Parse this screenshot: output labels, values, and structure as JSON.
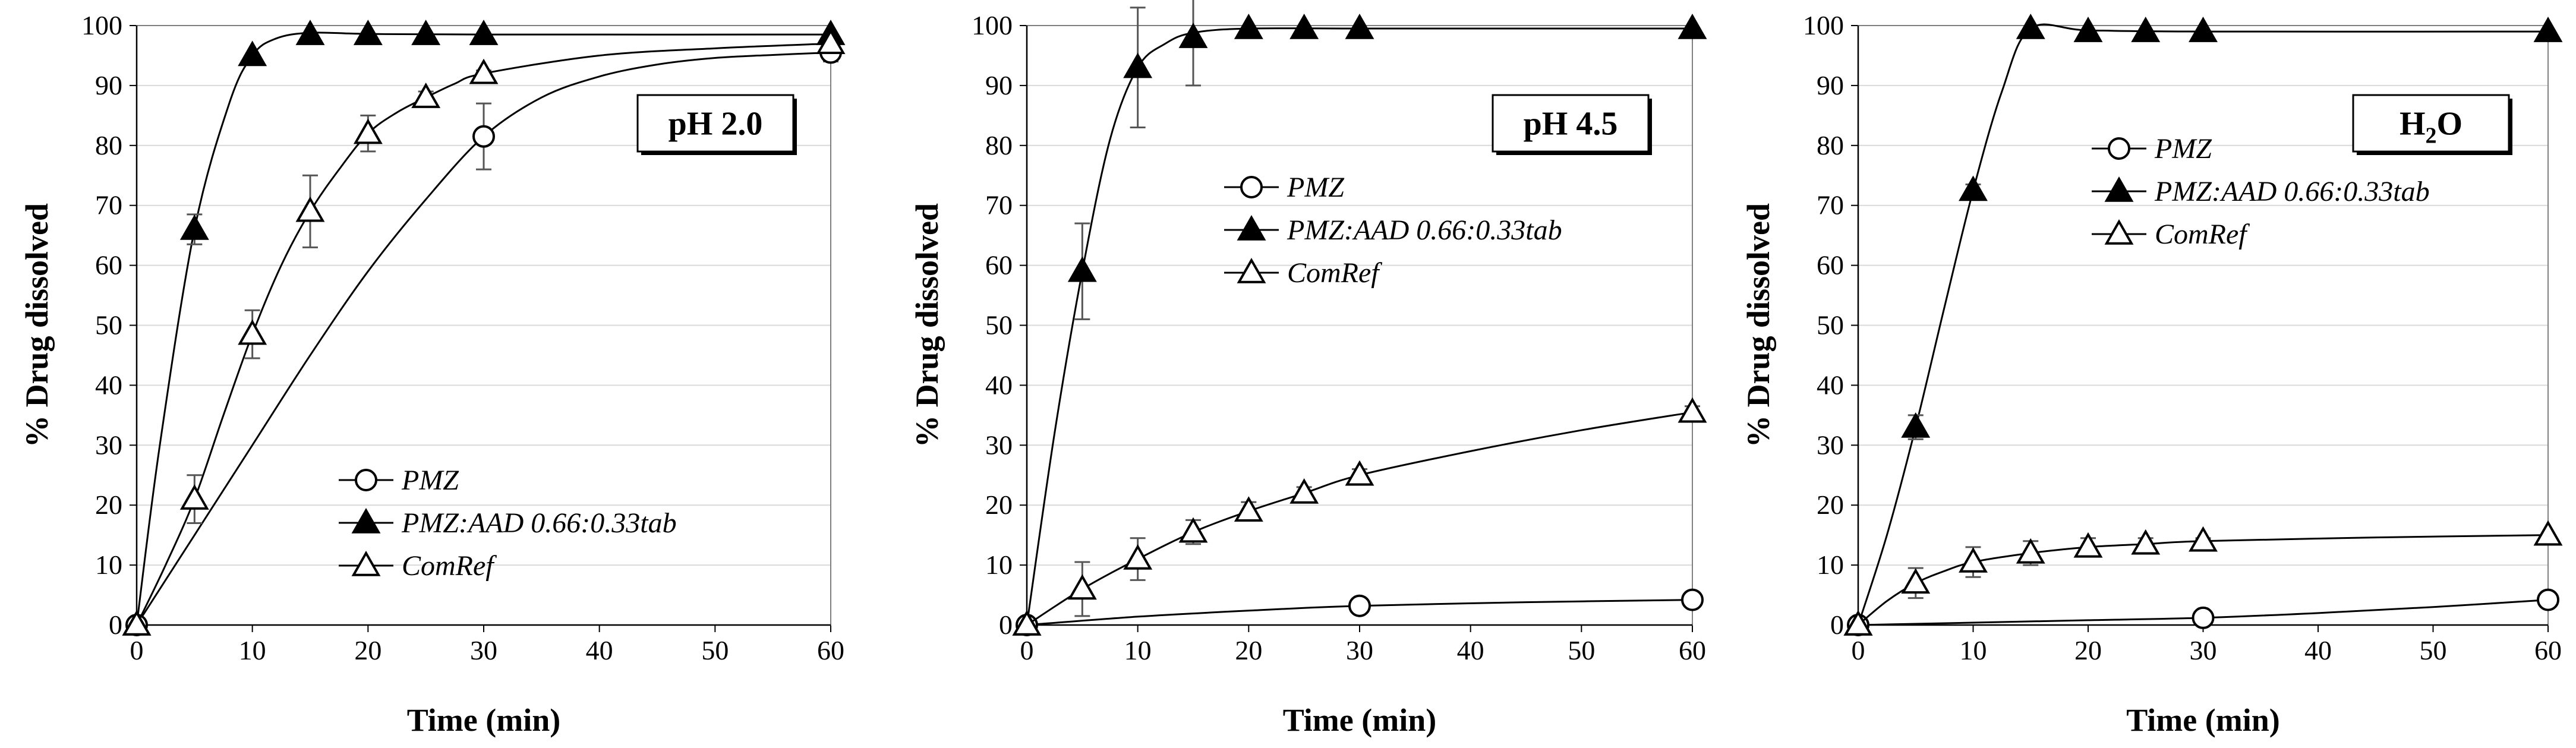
{
  "colors": {
    "marker_stroke": "#000000",
    "gridline": "#d9d9d9",
    "error_bar": "#555555",
    "background": "#ffffff"
  },
  "chart_data": [
    {
      "type": "line",
      "title": "pH 2.0",
      "title_parts": {
        "main": "pH 2.0",
        "sub": "",
        "tail": ""
      },
      "xlabel": "Time (min)",
      "ylabel": "% Drug dissolved",
      "xlim": [
        0,
        60
      ],
      "ylim": [
        0,
        100
      ],
      "xticks": [
        0,
        10,
        20,
        30,
        40,
        50,
        60
      ],
      "yticks": [
        0,
        10,
        20,
        30,
        40,
        50,
        60,
        70,
        80,
        90,
        100
      ],
      "grid": true,
      "legend_position": "lower-center",
      "series": [
        {
          "name": "PMZ",
          "marker": "circle-open",
          "x": [
            0,
            30,
            60
          ],
          "y": [
            0,
            81.5,
            95.5
          ],
          "err": [
            0,
            5.5,
            1.5
          ],
          "curve_x": [
            0,
            5,
            10,
            15,
            20,
            25,
            30,
            35,
            40,
            45,
            50,
            55,
            60
          ],
          "curve_y": [
            0,
            15,
            30,
            45,
            59,
            71,
            81.5,
            88,
            91.5,
            93.5,
            94.6,
            95.1,
            95.5
          ]
        },
        {
          "name": "PMZ:AAD 0.66:0.33tab",
          "marker": "triangle-filled",
          "x": [
            0,
            5,
            10,
            15,
            20,
            25,
            30,
            60
          ],
          "y": [
            0,
            66,
            95,
            98.5,
            98.5,
            98.5,
            98.5,
            98.5
          ],
          "err": [
            0,
            2.5,
            0,
            0,
            0,
            0,
            0,
            0
          ],
          "curve_x": [
            0,
            2,
            5,
            8,
            10,
            12,
            15,
            20,
            30,
            60
          ],
          "curve_y": [
            0,
            30,
            66,
            87,
            95,
            97.8,
            98.8,
            98.6,
            98.5,
            98.5
          ]
        },
        {
          "name": "ComRef",
          "marker": "triangle-open",
          "x": [
            0,
            5,
            10,
            15,
            20,
            25,
            30,
            60
          ],
          "y": [
            0,
            21,
            48.5,
            69,
            82,
            88,
            92,
            97
          ],
          "err": [
            0,
            4,
            4,
            6,
            3,
            1,
            0.5,
            0
          ],
          "curve_x": [
            0,
            2.5,
            5,
            7.5,
            10,
            12.5,
            15,
            17.5,
            20,
            22.5,
            25,
            27.5,
            30,
            40,
            50,
            60
          ],
          "curve_y": [
            0,
            10,
            21,
            35,
            48.5,
            60,
            69,
            76,
            82,
            85.5,
            88,
            90.3,
            92,
            95,
            96.2,
            97
          ]
        }
      ]
    },
    {
      "type": "line",
      "title": "pH 4.5",
      "title_parts": {
        "main": "pH 4.5",
        "sub": "",
        "tail": ""
      },
      "xlabel": "Time (min)",
      "ylabel": "% Drug dissolved",
      "xlim": [
        0,
        60
      ],
      "ylim": [
        0,
        100
      ],
      "xticks": [
        0,
        10,
        20,
        30,
        40,
        50,
        60
      ],
      "yticks": [
        0,
        10,
        20,
        30,
        40,
        50,
        60,
        70,
        80,
        90,
        100
      ],
      "grid": true,
      "legend_position": "top-center",
      "series": [
        {
          "name": "PMZ",
          "marker": "circle-open",
          "x": [
            0,
            30,
            60
          ],
          "y": [
            0,
            3.2,
            4.2
          ],
          "err": [
            0,
            0,
            0
          ],
          "curve_x": [
            0,
            10,
            20,
            30,
            45,
            60
          ],
          "curve_y": [
            0,
            1.4,
            2.4,
            3.2,
            3.8,
            4.2
          ]
        },
        {
          "name": "PMZ:AAD 0.66:0.33tab",
          "marker": "triangle-filled",
          "x": [
            0,
            5,
            10,
            15,
            20,
            25,
            30,
            60
          ],
          "y": [
            0,
            59,
            93,
            98,
            99.5,
            99.5,
            99.5,
            99.5
          ],
          "err": [
            0,
            8,
            10,
            8,
            0,
            0,
            0,
            0
          ],
          "curve_x": [
            0,
            2.5,
            5,
            7.5,
            10,
            12.5,
            15,
            20,
            30,
            60
          ],
          "curve_y": [
            0,
            32,
            59,
            81,
            93,
            97,
            98.8,
            99.5,
            99.5,
            99.5
          ]
        },
        {
          "name": "ComRef",
          "marker": "triangle-open",
          "x": [
            0,
            5,
            10,
            15,
            20,
            25,
            30,
            60
          ],
          "y": [
            0,
            6,
            11,
            15.5,
            19,
            22,
            25,
            35.5
          ],
          "err": [
            0,
            4.5,
            3.5,
            2,
            1.5,
            1,
            1,
            1
          ],
          "curve_x": [
            0,
            5,
            10,
            15,
            20,
            25,
            30,
            40,
            50,
            60
          ],
          "curve_y": [
            0,
            6,
            11,
            15.5,
            19,
            22,
            25,
            29,
            32.5,
            35.5
          ]
        }
      ]
    },
    {
      "type": "line",
      "title": "H2O",
      "title_parts": {
        "main": "H",
        "sub": "2",
        "tail": "O"
      },
      "xlabel": "Time (min)",
      "ylabel": "% Drug dissolved",
      "xlim": [
        0,
        60
      ],
      "ylim": [
        0,
        100
      ],
      "xticks": [
        0,
        10,
        20,
        30,
        40,
        50,
        60
      ],
      "yticks": [
        0,
        10,
        20,
        30,
        40,
        50,
        60,
        70,
        80,
        90,
        100
      ],
      "grid": true,
      "legend_position": "top-center",
      "series": [
        {
          "name": "PMZ",
          "marker": "circle-open",
          "x": [
            0,
            30,
            60
          ],
          "y": [
            0,
            1.2,
            4.2
          ],
          "err": [
            0,
            0,
            0
          ],
          "curve_x": [
            0,
            10,
            20,
            30,
            40,
            50,
            60
          ],
          "curve_y": [
            0,
            0.4,
            0.8,
            1.2,
            2,
            3,
            4.2
          ]
        },
        {
          "name": "PMZ:AAD 0.66:0.33tab",
          "marker": "triangle-filled",
          "x": [
            0,
            5,
            10,
            15,
            20,
            25,
            30,
            60
          ],
          "y": [
            0,
            33,
            72.5,
            99.5,
            99,
            99,
            99,
            99
          ],
          "err": [
            0,
            2,
            1,
            0,
            0,
            0,
            0,
            0
          ],
          "curve_x": [
            0,
            2.5,
            5,
            7.5,
            10,
            12.5,
            15,
            20,
            30,
            60
          ],
          "curve_y": [
            0,
            15,
            33,
            53,
            72.5,
            89,
            99.5,
            99.2,
            99,
            99
          ]
        },
        {
          "name": "ComRef",
          "marker": "triangle-open",
          "x": [
            0,
            5,
            10,
            15,
            20,
            25,
            30,
            60
          ],
          "y": [
            0,
            7,
            10.5,
            12,
            13,
            13.5,
            14,
            15
          ],
          "err": [
            0,
            2.5,
            2.5,
            2,
            1.5,
            1,
            0.5,
            0
          ],
          "curve_x": [
            0,
            2.5,
            5,
            7.5,
            10,
            15,
            20,
            25,
            30,
            45,
            60
          ],
          "curve_y": [
            0,
            4,
            7,
            9,
            10.5,
            12,
            13,
            13.5,
            14,
            14.6,
            15
          ]
        }
      ]
    }
  ]
}
